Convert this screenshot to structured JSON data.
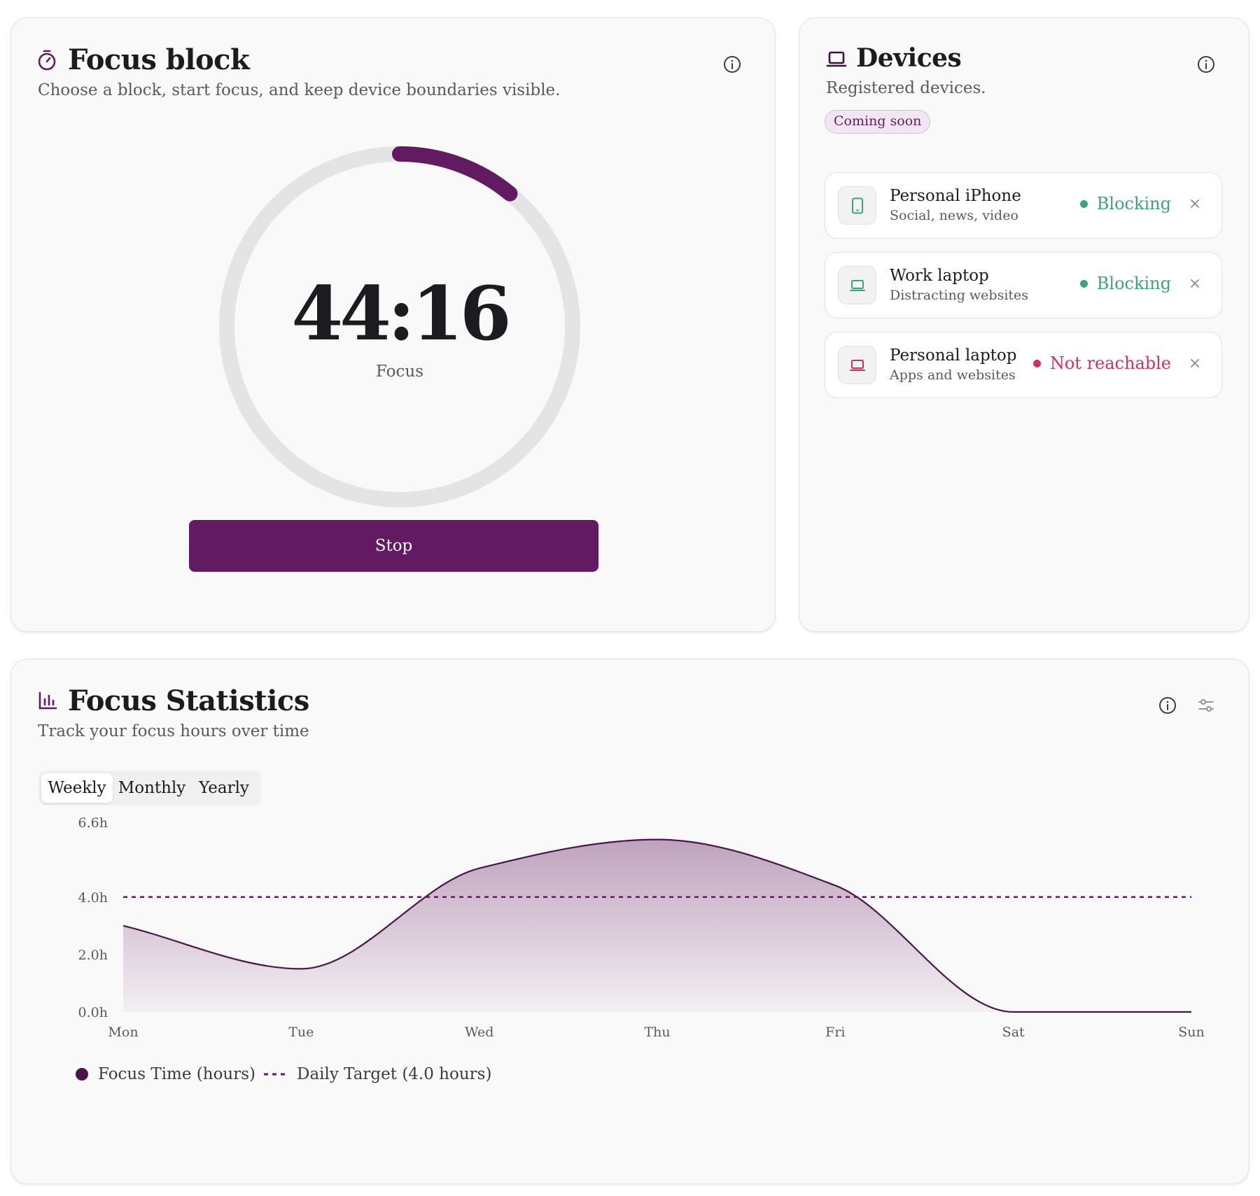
{
  "focus": {
    "title": "Focus block",
    "subtitle": "Choose a block, start focus, and keep device boundaries visible.",
    "timer": "44:16",
    "mode_label": "Focus",
    "progress": 0.11,
    "stop_label": "Stop",
    "accent": "#621b63",
    "icon": "stopwatch-icon"
  },
  "devices": {
    "title": "Devices",
    "subtitle": "Registered devices.",
    "badge": "Coming soon",
    "items": [
      {
        "name": "Personal iPhone",
        "description": "Social, news, video",
        "status": "Blocking",
        "status_color": "#3aa57a",
        "icon": "phone-icon"
      },
      {
        "name": "Work laptop",
        "description": "Distracting websites",
        "status": "Blocking",
        "status_color": "#3aa57a",
        "icon": "laptop-icon"
      },
      {
        "name": "Personal laptop",
        "description": "Apps and websites",
        "status": "Not reachable",
        "status_color": "#d42f5f",
        "icon": "laptop-icon"
      }
    ]
  },
  "stats": {
    "title": "Focus Statistics",
    "subtitle": "Track your focus hours over time",
    "tabs": [
      "Weekly",
      "Monthly",
      "Yearly"
    ],
    "active_tab": "Weekly"
  },
  "chart_data": {
    "type": "area",
    "categories": [
      "Mon",
      "Tue",
      "Wed",
      "Thu",
      "Fri",
      "Sat",
      "Sun"
    ],
    "series": [
      {
        "name": "Focus Time (hours)",
        "values": [
          3.0,
          1.5,
          5.0,
          6.0,
          4.4,
          0.0,
          0.0
        ],
        "color": "#4a1549"
      }
    ],
    "target": {
      "name": "Daily Target (4.0 hours)",
      "value": 4.0,
      "color": "#621b63"
    },
    "y_ticks": [
      {
        "value": 0.0,
        "label": "0.0h"
      },
      {
        "value": 2.0,
        "label": "2.0h"
      },
      {
        "value": 4.0,
        "label": "4.0h"
      },
      {
        "value": 6.6,
        "label": "6.6h"
      }
    ],
    "ylim": [
      0,
      6.6
    ],
    "grid": false,
    "legend_position": "bottom-left"
  }
}
